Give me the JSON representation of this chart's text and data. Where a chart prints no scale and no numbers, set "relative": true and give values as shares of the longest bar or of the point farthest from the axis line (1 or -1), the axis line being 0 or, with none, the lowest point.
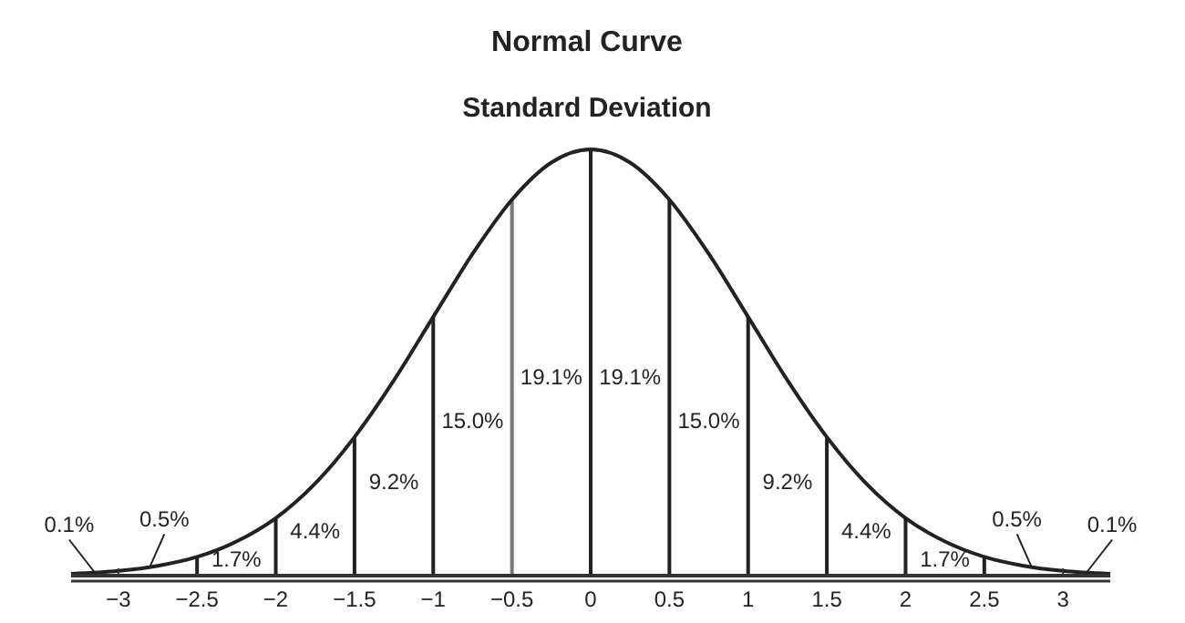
{
  "chart_data": {
    "type": "line",
    "title": "Normal Curve",
    "subtitle": "Standard Deviation",
    "relative": true,
    "x": [
      -3.3,
      -3,
      -2.75,
      -2.5,
      -2.25,
      -2,
      -1.75,
      -1.5,
      -1.25,
      -1,
      -0.75,
      -0.5,
      -0.25,
      0,
      0.25,
      0.5,
      0.75,
      1,
      1.25,
      1.5,
      1.75,
      2,
      2.25,
      2.5,
      2.75,
      3,
      3.3
    ],
    "series": [
      {
        "color": "#222222",
        "values": [
          0.004,
          0.011,
          0.023,
          0.044,
          0.08,
          0.135,
          0.216,
          0.325,
          0.458,
          0.607,
          0.755,
          0.882,
          0.969,
          1,
          0.969,
          0.882,
          0.755,
          0.607,
          0.458,
          0.325,
          0.216,
          0.135,
          0.08,
          0.044,
          0.023,
          0.011,
          0.004
        ]
      }
    ],
    "xlim": [
      -3.3,
      3.3
    ],
    "xticks": [
      {
        "value": -3,
        "label": "−3"
      },
      {
        "value": -2.5,
        "label": "−2.5"
      },
      {
        "value": -2,
        "label": "−2"
      },
      {
        "value": -1.5,
        "label": "−1.5"
      },
      {
        "value": -1,
        "label": "−1"
      },
      {
        "value": -0.5,
        "label": "−0.5"
      },
      0,
      0.5,
      1,
      1.5,
      2,
      2.5,
      3
    ],
    "marker": "none",
    "line_style": "solid",
    "grid": false,
    "ref_lines": [
      {
        "axis": "x",
        "value": -2.5,
        "color": "#222222"
      },
      {
        "axis": "x",
        "value": -2,
        "color": "#222222"
      },
      {
        "axis": "x",
        "value": -1.5,
        "color": "#222222"
      },
      {
        "axis": "x",
        "value": -1,
        "color": "#222222"
      },
      {
        "axis": "x",
        "value": -0.5,
        "color": "#777777"
      },
      {
        "axis": "x",
        "value": 0,
        "color": "#222222"
      },
      {
        "axis": "x",
        "value": 0.5,
        "color": "#222222"
      },
      {
        "axis": "x",
        "value": 1,
        "color": "#222222"
      },
      {
        "axis": "x",
        "value": 1.5,
        "color": "#222222"
      },
      {
        "axis": "x",
        "value": 2,
        "color": "#222222"
      },
      {
        "axis": "x",
        "value": 2.5,
        "color": "#222222"
      }
    ],
    "annotations": [
      "0.1%",
      "0.5%",
      "1.7%",
      "4.4%",
      "9.2%",
      "15.0%",
      "19.1%",
      "19.1%",
      "15.0%",
      "9.2%",
      "4.4%",
      "1.7%",
      "0.5%",
      "0.1%"
    ]
  }
}
